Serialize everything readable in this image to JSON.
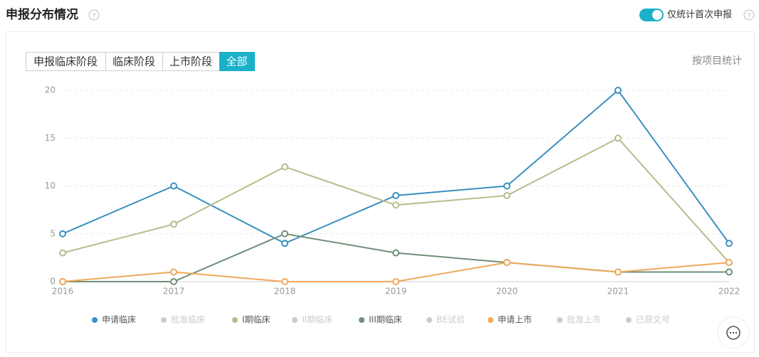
{
  "header": {
    "title": "申报分布情况",
    "toggle_label": "仅统计首次申报"
  },
  "tabs": [
    "申报临床阶段",
    "临床阶段",
    "上市阶段",
    "全部"
  ],
  "active_tab": 3,
  "stat_mode": "按项目统计",
  "chart_data": {
    "type": "line",
    "categories": [
      "2016",
      "2017",
      "2018",
      "2019",
      "2020",
      "2021",
      "2022"
    ],
    "ylim": [
      0,
      20
    ],
    "yticks": [
      0,
      5,
      10,
      15,
      20
    ],
    "grid": true,
    "legend": "bottom",
    "series": [
      {
        "name": "申请临床",
        "color": "#3a8fc0",
        "visible": true,
        "values": [
          5,
          10,
          4,
          9,
          10,
          20,
          4
        ]
      },
      {
        "name": "批准临床",
        "color": "#cccccc",
        "visible": false,
        "values": [
          null,
          null,
          null,
          null,
          null,
          null,
          null
        ]
      },
      {
        "name": "I期临床",
        "color": "#b9bb8c",
        "visible": true,
        "values": [
          3,
          6,
          12,
          8,
          9,
          15,
          2
        ]
      },
      {
        "name": "II期临床",
        "color": "#cccccc",
        "visible": false,
        "values": [
          null,
          null,
          null,
          null,
          null,
          null,
          null
        ]
      },
      {
        "name": "III期临床",
        "color": "#6f8f78",
        "visible": true,
        "values": [
          0,
          0,
          5,
          3,
          2,
          1,
          1
        ]
      },
      {
        "name": "BE试验",
        "color": "#cccccc",
        "visible": false,
        "values": [
          null,
          null,
          null,
          null,
          null,
          null,
          null
        ]
      },
      {
        "name": "申请上市",
        "color": "#f0a95a",
        "visible": true,
        "values": [
          0,
          1,
          0,
          0,
          2,
          1,
          2
        ]
      },
      {
        "name": "批准上市",
        "color": "#cccccc",
        "visible": false,
        "values": [
          null,
          null,
          null,
          null,
          null,
          null,
          null
        ]
      },
      {
        "name": "已获文号",
        "color": "#cccccc",
        "visible": false,
        "values": [
          null,
          null,
          null,
          null,
          null,
          null,
          null
        ]
      }
    ]
  }
}
